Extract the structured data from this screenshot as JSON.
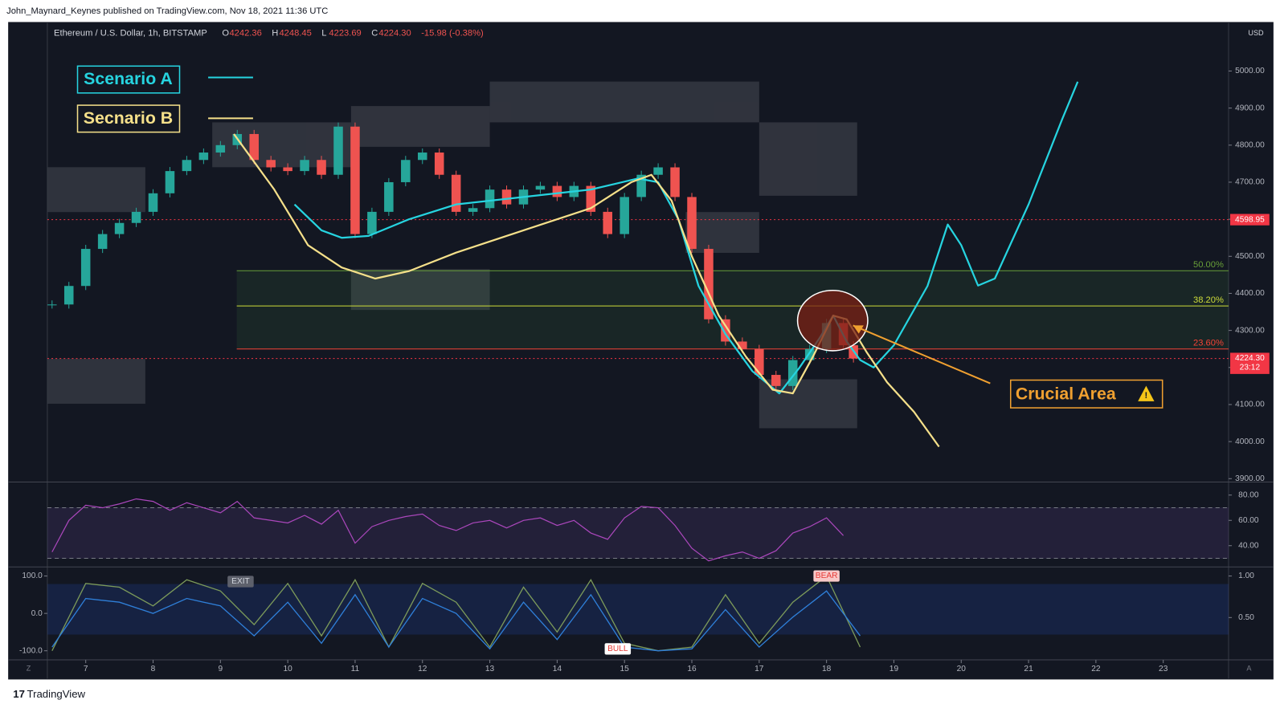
{
  "header": {
    "publisher": "John_Maynard_Keynes published on TradingView.com, Nov 18, 2021 11:36 UTC",
    "footer": "TradingView",
    "left_button": "Z",
    "right_button": "A"
  },
  "chart_data": [
    {
      "type": "candlestick",
      "title": "Ethereum / U.S. Dollar, 1h, BITSTAMP",
      "ohlc": [
        {
          "key": "O",
          "value": "4242.36"
        },
        {
          "key": "H",
          "value": "4248.45"
        },
        {
          "key": "L",
          "value": "4223.69"
        },
        {
          "key": "C",
          "value": "4224.30"
        }
      ],
      "change": "-15.98 (-0.38%)",
      "currency": "USD",
      "x": [
        6.5,
        6.75,
        7,
        7.25,
        7.5,
        7.75,
        8,
        8.25,
        8.5,
        8.75,
        9,
        9.25,
        9.5,
        9.75,
        10,
        10.25,
        10.5,
        10.75,
        11,
        11.25,
        11.5,
        11.75,
        12,
        12.25,
        12.5,
        12.75,
        13,
        13.25,
        13.5,
        13.75,
        14,
        14.25,
        14.5,
        14.75,
        15,
        15.25,
        15.5,
        15.75,
        16,
        16.25,
        16.5,
        16.75,
        17,
        17.25,
        17.5,
        17.75,
        18,
        18.25,
        18.4
      ],
      "close": [
        4370,
        4420,
        4520,
        4560,
        4590,
        4620,
        4670,
        4730,
        4760,
        4780,
        4800,
        4830,
        4760,
        4740,
        4730,
        4760,
        4720,
        4850,
        4560,
        4620,
        4700,
        4760,
        4780,
        4720,
        4620,
        4630,
        4680,
        4640,
        4680,
        4690,
        4660,
        4690,
        4620,
        4560,
        4660,
        4720,
        4740,
        4660,
        4520,
        4330,
        4270,
        4250,
        4180,
        4150,
        4220,
        4250,
        4320,
        4260,
        4224.3
      ],
      "up_color": "#26a69a",
      "down_color": "#ef5350",
      "xlim": [
        6.43,
        23.97
      ],
      "xticks": [
        7,
        8,
        9,
        10,
        11,
        12,
        13,
        14,
        15,
        16,
        17,
        18,
        19,
        20,
        21,
        22,
        23
      ],
      "ylim": [
        3893,
        5130
      ],
      "yticks": [
        {
          "value": 3900,
          "label": "3900.00"
        },
        {
          "value": 4000,
          "label": "4000.00"
        },
        {
          "value": 4100,
          "label": "4100.00"
        },
        {
          "value": 4200,
          "label": "4200.00"
        },
        {
          "value": 4300,
          "label": "4300.00"
        },
        {
          "value": 4400,
          "label": "4400.00"
        },
        {
          "value": 4500,
          "label": "4500.00"
        },
        {
          "value": 4600,
          "label": "4600.00"
        },
        {
          "value": 4700,
          "label": "4700.00"
        },
        {
          "value": 4800,
          "label": "4800.00"
        },
        {
          "value": 4900,
          "label": "4900.00"
        },
        {
          "value": 5000,
          "label": "5000.00"
        }
      ],
      "price_lines": [
        {
          "value": 4598.95,
          "label": "4598.95",
          "color": "#f23645"
        },
        {
          "value": 4224.3,
          "label": "4224.30",
          "sublabel": "23:12",
          "color": "#f23645"
        }
      ],
      "fib_levels": [
        {
          "value": 4461,
          "label": "50.00%",
          "color": "#689f38"
        },
        {
          "value": 4366,
          "label": "38.20%",
          "color": "#cddc39"
        },
        {
          "value": 4250,
          "label": "23.60%",
          "color": "#f44336"
        }
      ],
      "series": [
        {
          "name": "Scenario A",
          "color": "#26d4e0",
          "x": [
            10.1,
            10.5,
            10.8,
            11.2,
            11.8,
            12.5,
            13.5,
            14.5,
            15.2,
            15.5,
            15.8,
            16.1,
            16.5,
            16.9,
            17.3,
            17.6,
            17.9,
            18.1,
            18.3,
            18.5,
            18.7,
            19,
            19.5,
            19.8,
            20,
            20.25,
            20.5,
            21,
            21.5,
            21.73
          ],
          "values": [
            4640,
            4570,
            4550,
            4555,
            4600,
            4640,
            4660,
            4680,
            4710,
            4700,
            4600,
            4420,
            4290,
            4190,
            4130,
            4200,
            4280,
            4340,
            4270,
            4220,
            4200,
            4260,
            4420,
            4586,
            4530,
            4421,
            4440,
            4640,
            4870,
            4971
          ]
        },
        {
          "name": "Secnario B",
          "color": "#f5e08a",
          "x": [
            9.2,
            9.8,
            10.3,
            10.8,
            11.3,
            11.8,
            12.5,
            13.5,
            14.5,
            15.1,
            15.4,
            15.7,
            16,
            16.4,
            16.8,
            17.2,
            17.5,
            17.8,
            18.1,
            18.3,
            18.6,
            18.9,
            19.3,
            19.67
          ],
          "values": [
            4830,
            4680,
            4530,
            4470,
            4440,
            4460,
            4510,
            4570,
            4630,
            4700,
            4720,
            4650,
            4500,
            4340,
            4230,
            4140,
            4130,
            4230,
            4340,
            4330,
            4240,
            4160,
            4080,
            3986
          ]
        }
      ],
      "annotation": "Crucial Area"
    },
    {
      "type": "line",
      "x": [
        6.5,
        6.75,
        7,
        7.25,
        7.5,
        7.75,
        8,
        8.25,
        8.5,
        8.75,
        9,
        9.25,
        9.5,
        9.75,
        10,
        10.25,
        10.5,
        10.75,
        11,
        11.25,
        11.5,
        11.75,
        12,
        12.25,
        12.5,
        12.75,
        13,
        13.25,
        13.5,
        13.75,
        14,
        14.25,
        14.5,
        14.75,
        15,
        15.25,
        15.5,
        15.75,
        16,
        16.25,
        16.5,
        16.75,
        17,
        17.25,
        17.5,
        17.75,
        18,
        18.25
      ],
      "values": [
        35,
        60,
        72,
        70,
        73,
        77,
        75,
        68,
        74,
        70,
        66,
        75,
        62,
        60,
        58,
        64,
        57,
        68,
        42,
        55,
        60,
        63,
        65,
        56,
        52,
        58,
        60,
        54,
        60,
        62,
        56,
        60,
        50,
        45,
        62,
        71,
        70,
        56,
        38,
        28,
        32,
        35,
        30,
        36,
        50,
        55,
        62,
        48
      ],
      "color": "#ab47bc",
      "ylim": [
        24.5,
        89
      ],
      "yticks": [
        {
          "value": 80,
          "label": "80.00"
        },
        {
          "value": 60,
          "label": "60.00"
        },
        {
          "value": 40,
          "label": "40.00"
        }
      ],
      "bands": [
        70,
        30
      ]
    },
    {
      "type": "line",
      "x": [
        6.5,
        7,
        7.5,
        8,
        8.5,
        9,
        9.5,
        10,
        10.5,
        11,
        11.5,
        12,
        12.5,
        13,
        13.5,
        14,
        14.5,
        15,
        15.5,
        16,
        16.5,
        17,
        17.5,
        18,
        18.5
      ],
      "series": [
        {
          "color": "#7c9a5a",
          "values": [
            -100,
            80,
            70,
            20,
            90,
            60,
            -30,
            80,
            -60,
            90,
            -90,
            80,
            30,
            -90,
            70,
            -50,
            90,
            -80,
            -100,
            -90,
            50,
            -80,
            30,
            100,
            -90
          ]
        },
        {
          "color": "#2f7fd8",
          "values": [
            -90,
            40,
            30,
            0,
            40,
            20,
            -60,
            30,
            -80,
            50,
            -90,
            40,
            0,
            -95,
            30,
            -70,
            50,
            -90,
            -100,
            -95,
            10,
            -90,
            -10,
            60,
            -60
          ]
        }
      ],
      "ylim": [
        -120,
        120
      ],
      "yticks": [
        {
          "value": 100,
          "label": "100.0"
        },
        {
          "value": 0,
          "label": "0.0"
        },
        {
          "value": -100,
          "label": "-100.0"
        }
      ],
      "y2lim": [
        0.01,
        1.09
      ],
      "y2ticks": [
        {
          "value": 1,
          "label": "1.00"
        },
        {
          "value": 0.5,
          "label": "0.50"
        }
      ],
      "signals": [
        {
          "label": "EXIT",
          "x": 9.3,
          "value": 85,
          "color": "#5d606b"
        },
        {
          "label": "BEAR",
          "x": 18.0,
          "value": 100,
          "color": "#f8c8c8"
        },
        {
          "label": "BULL",
          "x": 14.9,
          "value": -95,
          "color": "#ffffff"
        }
      ]
    }
  ]
}
